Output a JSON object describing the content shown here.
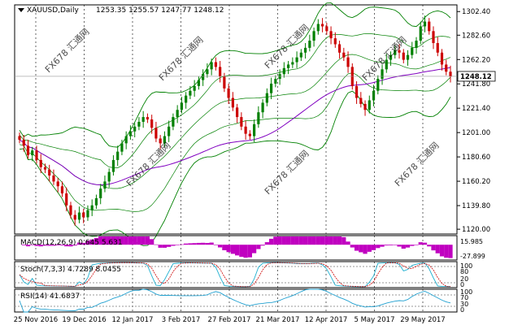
{
  "header": {
    "symbol": "XAUUSD,Daily",
    "ohlc": "1253.35 1255.57 1247.77 1248.12"
  },
  "watermark": "FX678 汇通网",
  "colors": {
    "background": "#ffffff",
    "bull": "#008000",
    "bear": "#cc0000",
    "bollinger": "#008000",
    "ma": "#8000c0",
    "macd_hist": "#c000c0",
    "stoch_main": "#20b0d0",
    "stoch_signal": "#cc0000",
    "rsi": "#20a0d0",
    "grid": "#000000",
    "price_tag_bg": "#ffffff"
  },
  "chart_data": [
    {
      "type": "line",
      "title": "XAUUSD,Daily",
      "subtitle": "1253.35 1255.57 1247.77 1248.12",
      "ylim": [
        1116.0,
        1308.0
      ],
      "y_ticks": [
        1302.4,
        1282.6,
        1262.2,
        1241.8,
        1221.4,
        1201.0,
        1180.6,
        1160.2,
        1139.8,
        1120.0
      ],
      "x_labels": [
        "25 Nov 2016",
        "19 Dec 2016",
        "12 Jan 2017",
        "3 Feb 2017",
        "27 Feb 2017",
        "21 Mar 2017",
        "12 Apr 2017",
        "5 May 2017",
        "29 May 2017"
      ],
      "current_price": "1248.12",
      "candles_close": [
        1195,
        1190,
        1182,
        1186,
        1178,
        1172,
        1170,
        1165,
        1160,
        1156,
        1150,
        1140,
        1132,
        1128,
        1134,
        1130,
        1136,
        1140,
        1146,
        1154,
        1160,
        1168,
        1178,
        1185,
        1192,
        1198,
        1202,
        1206,
        1210,
        1214,
        1212,
        1205,
        1196,
        1192,
        1198,
        1206,
        1214,
        1220,
        1226,
        1232,
        1236,
        1240,
        1245,
        1250,
        1254,
        1260,
        1256,
        1248,
        1238,
        1230,
        1222,
        1214,
        1206,
        1200,
        1198,
        1208,
        1218,
        1226,
        1234,
        1242,
        1246,
        1250,
        1255,
        1258,
        1260,
        1264,
        1268,
        1272,
        1278,
        1286,
        1292,
        1290,
        1286,
        1280,
        1275,
        1268,
        1264,
        1256,
        1240,
        1230,
        1225,
        1220,
        1228,
        1236,
        1246,
        1254,
        1262,
        1266,
        1270,
        1268,
        1262,
        1266,
        1272,
        1278,
        1290,
        1294,
        1286,
        1276,
        1268,
        1258,
        1252,
        1248
      ],
      "series": []
    },
    {
      "type": "bar",
      "title": "MACD(12,26,9) 0.645 5.631",
      "ylim": [
        -27.899,
        15.985
      ],
      "y_ticks": [
        "15.985",
        "-27.899"
      ]
    },
    {
      "type": "line",
      "title": "Stoch(7,3,3) 4.7289 8.0455",
      "ylim": [
        0,
        100
      ],
      "y_ticks": [
        "100",
        "80",
        "20",
        "0"
      ]
    },
    {
      "type": "line",
      "title": "RSI(14) 41.6837",
      "ylim": [
        0,
        100
      ],
      "y_ticks": [
        "100",
        "70",
        "30",
        "0"
      ]
    }
  ]
}
